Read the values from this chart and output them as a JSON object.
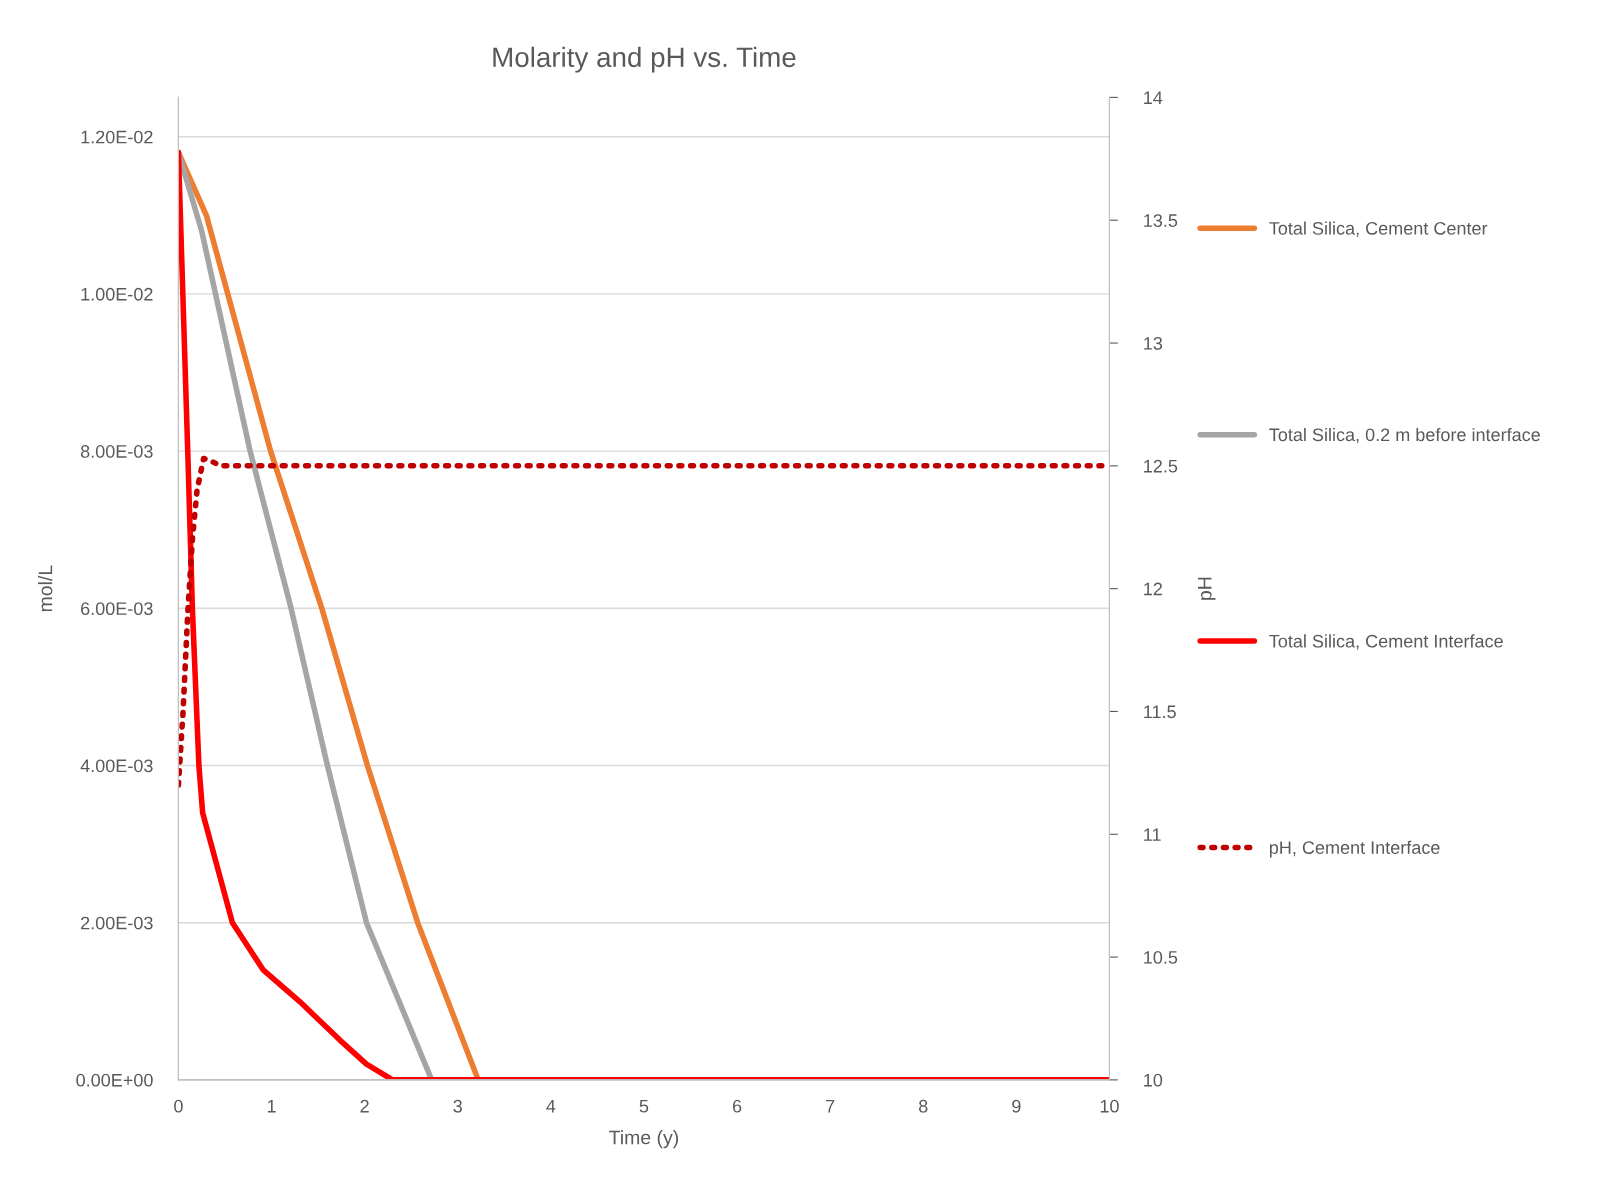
{
  "chart_data": {
    "type": "line",
    "title": "Molarity and pH vs. Time",
    "xlabel": "Time (y)",
    "ylabel": "mol/L",
    "y2label": "pH",
    "xlim": [
      0,
      10
    ],
    "xticks": [
      0,
      1,
      2,
      3,
      4,
      5,
      6,
      7,
      8,
      9,
      10
    ],
    "ylim": [
      0,
      0.0125
    ],
    "yticks": [
      {
        "value": 0,
        "label": "0.00E+00"
      },
      {
        "value": 0.002,
        "label": "2.00E-03"
      },
      {
        "value": 0.004,
        "label": "4.00E-03"
      },
      {
        "value": 0.006,
        "label": "6.00E-03"
      },
      {
        "value": 0.008,
        "label": "8.00E-03"
      },
      {
        "value": 0.01,
        "label": "1.00E-02"
      },
      {
        "value": 0.012,
        "label": "1.20E-02"
      }
    ],
    "y2lim": [
      10,
      14
    ],
    "y2ticks": [
      10,
      10.5,
      11,
      11.5,
      12,
      12.5,
      13,
      13.5,
      14
    ],
    "grid": "y",
    "legend": "right",
    "marker": "none",
    "series": [
      {
        "name": "Total Silica, Cement Center",
        "color": "#ed7d31",
        "line_style": "solid",
        "x": [
          0,
          0.3,
          0.99,
          1.54,
          2.03,
          2.57,
          3.22,
          10
        ],
        "values": [
          0.0118,
          0.011,
          0.008,
          0.006,
          0.004,
          0.002,
          0,
          0
        ]
      },
      {
        "name": "Total Silica, 0.2 m before interface",
        "color": "#a5a5a5",
        "line_style": "solid",
        "x": [
          0,
          0.25,
          0.77,
          1.21,
          1.6,
          2.02,
          2.72,
          10
        ],
        "values": [
          0.0118,
          0.0108,
          0.008,
          0.006,
          0.004,
          0.002,
          0,
          0
        ]
      },
      {
        "name": "Total Silica, Cement Interface",
        "color": "#ff0000",
        "line_style": "solid",
        "x": [
          0,
          0.1,
          0.15,
          0.22,
          0.26,
          0.58,
          0.91,
          1.3,
          1.74,
          2.02,
          2.3,
          10
        ],
        "values": [
          0.0118,
          0.008,
          0.006,
          0.004,
          0.0034,
          0.002,
          0.0014,
          0.001,
          0.0005,
          0.0002,
          0,
          0
        ]
      },
      {
        "name": "pH, Cement Interface",
        "color": "#c00000",
        "line_style": "dotted",
        "axis": "y2",
        "x": [
          0,
          0.05,
          0.1,
          0.15,
          0.2,
          0.27,
          0.35,
          0.45,
          10
        ],
        "values": [
          11.2,
          11.5,
          11.9,
          12.2,
          12.4,
          12.53,
          12.52,
          12.5,
          12.5
        ]
      }
    ]
  }
}
